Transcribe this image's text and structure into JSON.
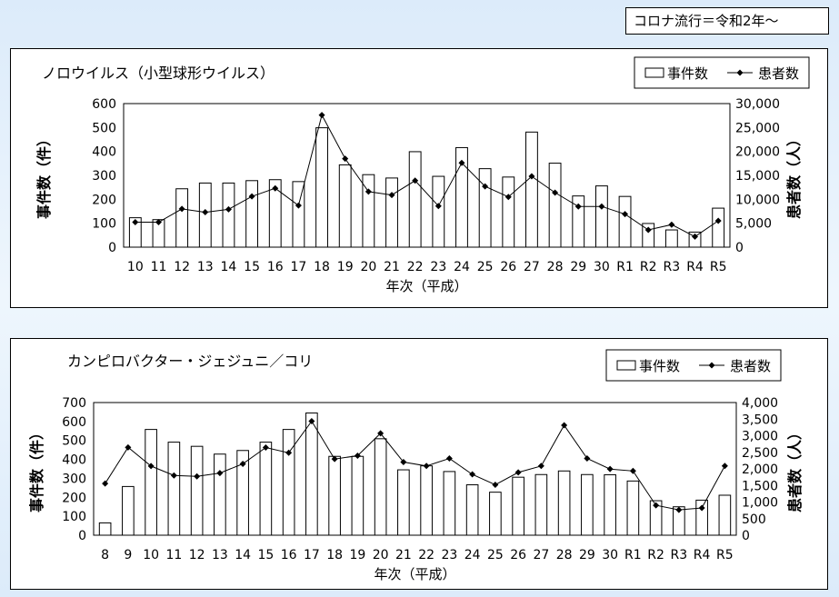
{
  "note": "コロナ流行＝令和2年～",
  "chart_data": [
    {
      "type": "bar",
      "title": "ノロウイルス（小型球形ウイルス）",
      "xlabel": "年次（平成）",
      "ylabel": "事件数（件）",
      "y2label": "患者数（人）",
      "legend_position": "top-right",
      "categories": [
        "10",
        "11",
        "12",
        "13",
        "14",
        "15",
        "16",
        "17",
        "18",
        "19",
        "20",
        "21",
        "22",
        "23",
        "24",
        "25",
        "26",
        "27",
        "28",
        "29",
        "30",
        "R1",
        "R2",
        "R3",
        "R4",
        "R5"
      ],
      "series": [
        {
          "name": "事件数",
          "kind": "bar",
          "axis": "left",
          "values": [
            123,
            115,
            244,
            268,
            268,
            278,
            282,
            274,
            499,
            344,
            303,
            289,
            399,
            296,
            416,
            328,
            293,
            481,
            351,
            214,
            256,
            212,
            99,
            72,
            63,
            163
          ]
        },
        {
          "name": "患者数",
          "kind": "line",
          "axis": "right",
          "values": [
            5213,
            5217,
            8000,
            7300,
            7900,
            10600,
            12300,
            8700,
            27600,
            18500,
            11600,
            10900,
            13900,
            8600,
            17600,
            12700,
            10500,
            14800,
            11400,
            8500,
            8500,
            6900,
            3600,
            4700,
            2200,
            5500
          ]
        }
      ],
      "ylim": [
        0,
        600
      ],
      "yticks": [
        0,
        100,
        200,
        300,
        400,
        500,
        600
      ],
      "y2lim": [
        0,
        30000
      ],
      "y2ticks": [
        0,
        5000,
        10000,
        15000,
        20000,
        25000,
        30000
      ],
      "y2ticklabels": [
        "0",
        "5,000",
        "10,000",
        "15,000",
        "20,000",
        "25,000",
        "30,000"
      ]
    },
    {
      "type": "bar",
      "title": "カンピロバクター・ジェジュニ／コリ",
      "xlabel": "年次（平成）",
      "ylabel": "事件数（件）",
      "y2label": "患者数（人）",
      "legend_position": "top-right",
      "categories": [
        "8",
        "9",
        "10",
        "11",
        "12",
        "13",
        "14",
        "15",
        "16",
        "17",
        "18",
        "19",
        "20",
        "21",
        "22",
        "23",
        "24",
        "25",
        "26",
        "27",
        "28",
        "29",
        "30",
        "R1",
        "R2",
        "R3",
        "R4",
        "R5"
      ],
      "series": [
        {
          "name": "事件数",
          "kind": "bar",
          "axis": "left",
          "values": [
            65,
            257,
            558,
            491,
            469,
            428,
            447,
            491,
            558,
            645,
            416,
            416,
            509,
            345,
            366,
            336,
            266,
            227,
            306,
            320,
            339,
            320,
            319,
            286,
            182,
            150,
            185,
            211
          ]
        },
        {
          "name": "患者数",
          "kind": "line",
          "axis": "right",
          "values": [
            1557,
            2648,
            2085,
            1802,
            1774,
            1874,
            2152,
            2643,
            2485,
            3439,
            2297,
            2396,
            3071,
            2206,
            2089,
            2315,
            1834,
            1520,
            1893,
            2089,
            3316,
            2315,
            1995,
            1937,
            901,
            764,
            822,
            2089
          ]
        }
      ],
      "ylim": [
        0,
        700
      ],
      "yticks": [
        0,
        100,
        200,
        300,
        400,
        500,
        600,
        700
      ],
      "y2lim": [
        0,
        4000
      ],
      "y2ticks": [
        0,
        500,
        1000,
        1500,
        2000,
        2500,
        3000,
        3500,
        4000
      ],
      "y2ticklabels": [
        "0",
        "500",
        "1,000",
        "1,500",
        "2,000",
        "2,500",
        "3,000",
        "3,500",
        "4,000"
      ]
    }
  ]
}
